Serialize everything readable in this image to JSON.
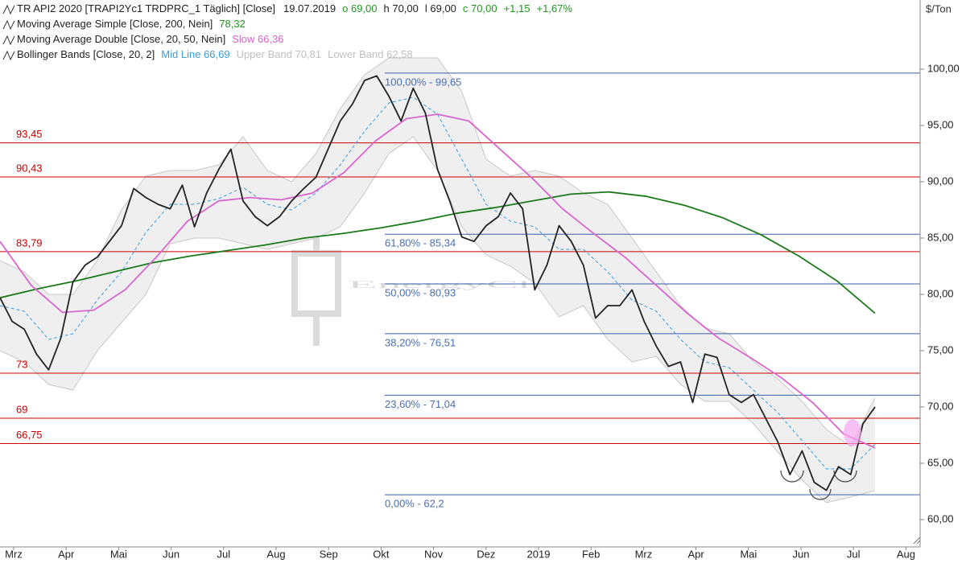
{
  "chart_data": {
    "type": "line",
    "unit_label": "$/Ton",
    "watermark": "EnergyCharts.de",
    "ylim": [
      57.57,
      106.14
    ],
    "yticks": [
      {
        "value": 60,
        "label": "60,00"
      },
      {
        "value": 65,
        "label": "65,00"
      },
      {
        "value": 70,
        "label": "70,00"
      },
      {
        "value": 75,
        "label": "75,00"
      },
      {
        "value": 80,
        "label": "80,00"
      },
      {
        "value": 85,
        "label": "85,00"
      },
      {
        "value": 90,
        "label": "90,00"
      },
      {
        "value": 95,
        "label": "95,00"
      },
      {
        "value": 100,
        "label": "100,00"
      }
    ],
    "x_tick_labels": [
      "Mrz",
      "Apr",
      "Mai",
      "Jun",
      "Jul",
      "Aug",
      "Sep",
      "Okt",
      "Nov",
      "Dez",
      "2019",
      "Feb",
      "Mrz",
      "Apr",
      "Mai",
      "Jun",
      "Jul",
      "Aug"
    ],
    "series": [
      {
        "name": "TR API2 2020 [TRAPI2Yc1 TRDPRC_1 Täglich] [Close]",
        "color": "#222222",
        "details": [
          {
            "text": "19.07.2019",
            "color": "#222222"
          },
          {
            "text": "o 69,00",
            "color": "#1f9a1f"
          },
          {
            "text": "h 70,00",
            "color": "#222222"
          },
          {
            "text": "l 69,00",
            "color": "#222222"
          },
          {
            "text": "c 70,00",
            "color": "#1f9a1f"
          },
          {
            "text": "+1,15",
            "color": "#1f9a1f"
          },
          {
            "text": "+1,67%",
            "color": "#1f9a1f"
          }
        ],
        "values": [
          79.7,
          77.6,
          76.9,
          74.7,
          73.3,
          76.1,
          81.1,
          82.6,
          83.3,
          84.7,
          86.1,
          89.4,
          88.6,
          88,
          87.6,
          89.7,
          86,
          89,
          91.1,
          92.9,
          88.3,
          86.9,
          86.1,
          86.9,
          88.3,
          89.4,
          90.4,
          92.9,
          95.4,
          96.9,
          99,
          99.4,
          97.6,
          95.4,
          98.3,
          96.1,
          91.1,
          88.3,
          85.1,
          84.7,
          86.1,
          86.9,
          89,
          87.6,
          80.4,
          82.6,
          86.1,
          84.7,
          82.6,
          77.9,
          79,
          79,
          80.4,
          77.6,
          75.4,
          73.6,
          74,
          70.4,
          74.7,
          74.4,
          71.1,
          70.4,
          71.1,
          69,
          66.9,
          64,
          66.1,
          63.3,
          62.6,
          64.7,
          64,
          68.5,
          70
        ]
      },
      {
        "name": "Moving Average Simple  [Close, 200, Nein]",
        "color": "#1a7a1a",
        "details": [
          {
            "text": "78,32",
            "color": "#1f9a1f"
          }
        ],
        "values": [
          79.7,
          80.5,
          81.2,
          82,
          82.8,
          83.4,
          83.9,
          84.4,
          85,
          85.4,
          85.9,
          86.5,
          87.2,
          87.7,
          88.3,
          88.9,
          89.1,
          88.7,
          87.9,
          86.8,
          85.3,
          83.4,
          81.2,
          78.32
        ]
      },
      {
        "name": "Moving Average Double  [Close, 20, 50, Nein]",
        "color": "#d966d0",
        "details": [
          {
            "text": "Slow 66,36",
            "color": "#d966d0"
          }
        ],
        "values": [
          84.7,
          80.8,
          78.4,
          78.6,
          80.4,
          83.3,
          86.5,
          88.3,
          88.6,
          88.4,
          89,
          90.8,
          93.6,
          95.6,
          96,
          95.4,
          92.9,
          90.4,
          87.6,
          85.4,
          83.3,
          80.8,
          78.3,
          76.1,
          74.4,
          72.6,
          70.4,
          67.6,
          66.36
        ]
      },
      {
        "name": "Bollinger Bands  [Close, 20, 2]",
        "color": "#3a9ee0",
        "band_color": "#c8c8c8",
        "details": [
          {
            "text": "Mid Line 66,69",
            "color": "#3a9ee0"
          },
          {
            "text": "Upper Band 70,81",
            "color": "#c0c0c0"
          },
          {
            "text": "Lower Band 62,58",
            "color": "#c0c0c0"
          }
        ],
        "values": [
          79,
          78.5,
          76,
          76.5,
          79.5,
          82,
          85.5,
          88,
          88,
          88.5,
          89.5,
          88,
          87.5,
          89,
          91.5,
          94.5,
          97,
          97.5,
          96,
          92,
          88,
          86.5,
          86,
          84,
          84,
          82,
          79.5,
          78.5,
          76,
          74,
          73.5,
          71.5,
          69.5,
          67,
          64.5,
          64.5,
          66.69
        ],
        "upper": [
          83,
          82,
          80,
          80,
          83,
          87.5,
          90.5,
          91,
          91,
          91.5,
          94,
          91,
          90,
          92.5,
          96.5,
          99.5,
          101,
          101,
          101,
          98,
          92,
          90.5,
          91,
          90.5,
          89,
          88,
          85,
          82,
          79,
          77,
          76.5,
          74,
          72.5,
          70.5,
          68,
          66.5,
          70.81
        ],
        "lower": [
          75,
          74,
          72,
          71.5,
          75,
          77.5,
          80,
          84.5,
          85,
          85,
          84.5,
          84,
          84.5,
          85,
          86,
          89,
          92.5,
          94,
          91,
          86,
          83.5,
          82.5,
          81,
          78,
          79,
          76,
          74,
          74.5,
          72,
          70.5,
          70.5,
          68.5,
          66,
          63.5,
          61.5,
          62,
          62.58
        ]
      }
    ],
    "levels_color": "#cc0000",
    "levels": [
      {
        "value": 93.45,
        "label": "93,45"
      },
      {
        "value": 90.43,
        "label": "90,43"
      },
      {
        "value": 83.79,
        "label": "83,79"
      },
      {
        "value": 73,
        "label": "73"
      },
      {
        "value": 69,
        "label": "69"
      },
      {
        "value": 66.75,
        "label": "66,75"
      }
    ],
    "fib_color": "#3b5ea8",
    "fib_levels": [
      {
        "value": 99.65,
        "label": "100,00% - 99,65"
      },
      {
        "value": 85.34,
        "label": "61,80% - 85,34"
      },
      {
        "value": 80.93,
        "label": "50,00% - 80,93"
      },
      {
        "value": 76.51,
        "label": "38,20% - 76,51"
      },
      {
        "value": 71.04,
        "label": "23,60% - 71,04"
      },
      {
        "value": 62.2,
        "label": "0,00% - 62,2"
      }
    ]
  }
}
